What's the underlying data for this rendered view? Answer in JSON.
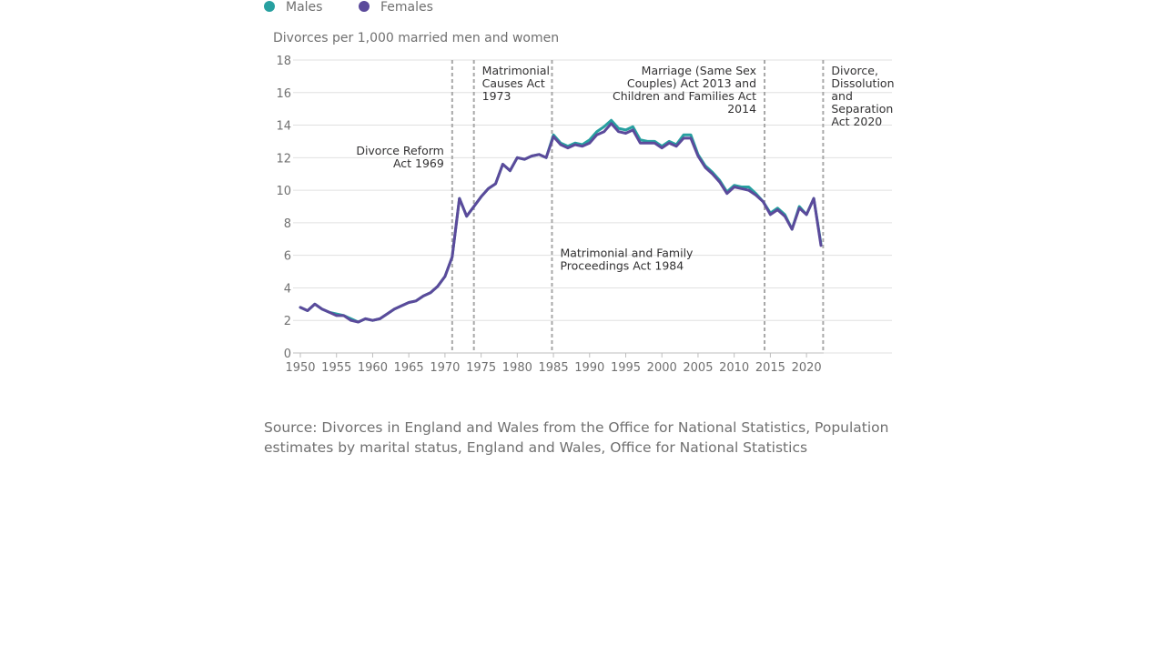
{
  "legend": [
    {
      "name": "Males",
      "color": "#27a0a0"
    },
    {
      "name": "Females",
      "color": "#5b4a9b"
    }
  ],
  "source": "Source: Divorces in England and Wales from the Office for National Statistics, Population estimates by marital status, England and Wales, Office for National Statistics",
  "chart_data": {
    "type": "line",
    "title": "",
    "ylabel": "Divorces per 1,000 married men and women",
    "xlabel": "",
    "xlim": [
      1950,
      2022
    ],
    "ylim": [
      0,
      18
    ],
    "xticks": [
      1950,
      1955,
      1960,
      1965,
      1970,
      1975,
      1980,
      1985,
      1990,
      1995,
      2000,
      2005,
      2010,
      2015,
      2020
    ],
    "yticks": [
      0,
      2,
      4,
      6,
      8,
      10,
      12,
      14,
      16,
      18
    ],
    "grid": "horizontal",
    "legend_position": "top-left",
    "x": [
      1950,
      1951,
      1952,
      1953,
      1954,
      1955,
      1956,
      1957,
      1958,
      1959,
      1960,
      1961,
      1962,
      1963,
      1964,
      1965,
      1966,
      1967,
      1968,
      1969,
      1970,
      1971,
      1972,
      1973,
      1974,
      1975,
      1976,
      1977,
      1978,
      1979,
      1980,
      1981,
      1982,
      1983,
      1984,
      1985,
      1986,
      1987,
      1988,
      1989,
      1990,
      1991,
      1992,
      1993,
      1994,
      1995,
      1996,
      1997,
      1998,
      1999,
      2000,
      2001,
      2002,
      2003,
      2004,
      2005,
      2006,
      2007,
      2008,
      2009,
      2010,
      2011,
      2012,
      2013,
      2014,
      2015,
      2016,
      2017,
      2018,
      2019,
      2020,
      2021,
      2022
    ],
    "series": [
      {
        "name": "Males",
        "color": "#27a0a0",
        "values": [
          2.8,
          2.6,
          3.0,
          2.7,
          2.5,
          2.4,
          2.3,
          2.1,
          1.9,
          2.1,
          2.0,
          2.1,
          2.4,
          2.7,
          2.9,
          3.1,
          3.2,
          3.5,
          3.7,
          4.1,
          4.7,
          5.9,
          9.5,
          8.4,
          9.0,
          9.6,
          10.1,
          10.4,
          11.6,
          11.2,
          12.0,
          11.9,
          12.1,
          12.2,
          12.0,
          13.4,
          12.9,
          12.7,
          12.9,
          12.8,
          13.1,
          13.6,
          13.9,
          14.3,
          13.8,
          13.7,
          13.9,
          13.1,
          13.0,
          13.0,
          12.7,
          13.0,
          12.8,
          13.4,
          13.4,
          12.2,
          11.5,
          11.1,
          10.6,
          9.9,
          10.3,
          10.2,
          10.2,
          9.8,
          9.3,
          8.6,
          8.9,
          8.5,
          7.6,
          9.0,
          8.5,
          9.5,
          6.7
        ]
      },
      {
        "name": "Females",
        "color": "#5b4a9b",
        "values": [
          2.8,
          2.6,
          3.0,
          2.7,
          2.5,
          2.3,
          2.3,
          2.0,
          1.9,
          2.1,
          2.0,
          2.1,
          2.4,
          2.7,
          2.9,
          3.1,
          3.2,
          3.5,
          3.7,
          4.1,
          4.7,
          5.9,
          9.5,
          8.4,
          9.0,
          9.6,
          10.1,
          10.4,
          11.6,
          11.2,
          12.0,
          11.9,
          12.1,
          12.2,
          12.0,
          13.3,
          12.8,
          12.6,
          12.8,
          12.7,
          12.9,
          13.4,
          13.6,
          14.1,
          13.6,
          13.5,
          13.7,
          12.9,
          12.9,
          12.9,
          12.6,
          12.9,
          12.7,
          13.2,
          13.2,
          12.1,
          11.4,
          11.0,
          10.5,
          9.8,
          10.2,
          10.1,
          10.0,
          9.7,
          9.3,
          8.5,
          8.8,
          8.4,
          7.6,
          8.9,
          8.5,
          9.5,
          6.6
        ]
      }
    ],
    "annotations": [
      {
        "x": 1971,
        "lines": [
          "Divorce Reform",
          "Act 1969"
        ],
        "side": "left",
        "y": 12.2
      },
      {
        "x": 1974,
        "lines": [
          "Matrimonial",
          "Causes Act",
          "1973"
        ],
        "side": "right",
        "y": 17.1
      },
      {
        "x": 1984.8,
        "lines": [
          "Matrimonial and Family",
          "Proceedings Act 1984"
        ],
        "side": "right",
        "y": 5.9
      },
      {
        "x": 2014.2,
        "lines": [
          "Marriage (Same Sex",
          "Couples) Act 2013 and",
          "Children and Families Act",
          "2014"
        ],
        "side": "left",
        "y": 17.1
      },
      {
        "x": 2022.3,
        "lines": [
          "Divorce,",
          "Dissolution",
          "and",
          "Separation",
          "Act 2020"
        ],
        "side": "right",
        "y": 17.1
      }
    ]
  }
}
